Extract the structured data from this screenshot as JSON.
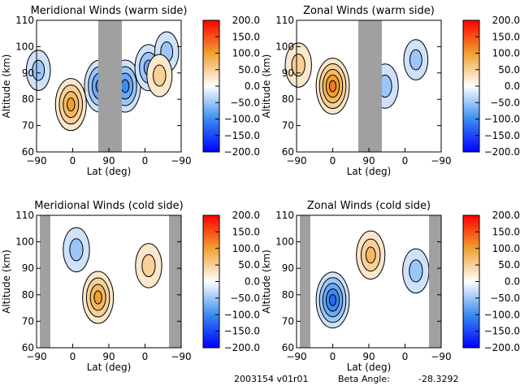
{
  "footer": {
    "id_text": "2003154 v01r01",
    "beta_label": "Beta Angle:",
    "beta_value": "-28.3292"
  },
  "chart_data": [
    {
      "type": "heatmap",
      "title": "Meridional Winds (warm side)",
      "xlabel": "Lat (deg)",
      "ylabel": "Altitude (km)",
      "x_tick_labels": [
        "-90",
        "0",
        "90",
        "0",
        "-90"
      ],
      "y_ticks": [
        60,
        70,
        80,
        90,
        100,
        110
      ],
      "ylim": [
        60,
        110
      ],
      "colorbar": {
        "ticks": [
          "200.0",
          "150.0",
          "100.0",
          "50.0",
          "0.0",
          "-50.0",
          "-100.0",
          "-150.0",
          "-200.0"
        ],
        "range": [
          -200,
          200
        ]
      },
      "masked_lat_band": "around 90 (pole crossing)",
      "features": [
        {
          "kind": "positive",
          "center_lat_idx": 0.95,
          "center_alt": 78,
          "peak": 100
        },
        {
          "kind": "negative",
          "center_lat_idx": 1.75,
          "center_alt": 85,
          "peak": -100
        },
        {
          "kind": "negative",
          "center_lat_idx": 2.45,
          "center_alt": 85,
          "peak": -100
        },
        {
          "kind": "negative",
          "center_lat_idx": 3.1,
          "center_alt": 92,
          "peak": -70
        },
        {
          "kind": "negative",
          "center_lat_idx": 3.6,
          "center_alt": 98,
          "peak": -40
        },
        {
          "kind": "positive",
          "center_lat_idx": 3.4,
          "center_alt": 89,
          "peak": 50
        },
        {
          "kind": "negative",
          "center_lat_idx": 0.05,
          "center_alt": 91,
          "peak": -40
        }
      ]
    },
    {
      "type": "heatmap",
      "title": "Zonal Winds (warm side)",
      "xlabel": "Lat (deg)",
      "ylabel": "Altitude (km)",
      "x_tick_labels": [
        "-90",
        "0",
        "90",
        "0",
        "-90"
      ],
      "y_ticks": [
        60,
        70,
        80,
        90,
        100,
        110
      ],
      "ylim": [
        60,
        110
      ],
      "colorbar": {
        "ticks": [
          "200.0",
          "150.0",
          "100.0",
          "50.0",
          "0.0",
          "-50.0",
          "-100.0",
          "-150.0",
          "-200.0"
        ],
        "range": [
          -200,
          200
        ]
      },
      "masked_lat_band": "around 90 (pole crossing)",
      "features": [
        {
          "kind": "positive",
          "center_lat_idx": 1.0,
          "center_alt": 85,
          "peak": 120
        },
        {
          "kind": "negative",
          "center_lat_idx": 2.45,
          "center_alt": 85,
          "peak": -60
        },
        {
          "kind": "negative",
          "center_lat_idx": 3.3,
          "center_alt": 95,
          "peak": -40
        },
        {
          "kind": "positive",
          "center_lat_idx": 0.05,
          "center_alt": 93,
          "peak": 60
        }
      ]
    },
    {
      "type": "heatmap",
      "title": "Meridional Winds (cold side)",
      "xlabel": "Lat (deg)",
      "ylabel": "Altitude (km)",
      "x_tick_labels": [
        "-90",
        "0",
        "90",
        "0",
        "-90"
      ],
      "y_ticks": [
        60,
        70,
        80,
        90,
        100,
        110
      ],
      "ylim": [
        60,
        110
      ],
      "colorbar": {
        "ticks": [
          "200.0",
          "150.0",
          "100.0",
          "50.0",
          "0.0",
          "-50.0",
          "-100.0",
          "-150.0",
          "-200.0"
        ],
        "range": [
          -200,
          200
        ]
      },
      "masked_lat_band": "near the -90 edges",
      "features": [
        {
          "kind": "positive",
          "center_lat_idx": 1.7,
          "center_alt": 79,
          "peak": 100
        },
        {
          "kind": "negative",
          "center_lat_idx": 1.1,
          "center_alt": 97,
          "peak": -60
        },
        {
          "kind": "positive",
          "center_lat_idx": 3.1,
          "center_alt": 91,
          "peak": 60
        }
      ]
    },
    {
      "type": "heatmap",
      "title": "Zonal Winds (cold side)",
      "xlabel": "Lat (deg)",
      "ylabel": "Altitude (km)",
      "x_tick_labels": [
        "-90",
        "0",
        "90",
        "0",
        "-90"
      ],
      "y_ticks": [
        60,
        70,
        80,
        90,
        100,
        110
      ],
      "ylim": [
        60,
        110
      ],
      "colorbar": {
        "ticks": [
          "200.0",
          "150.0",
          "100.0",
          "50.0",
          "0.0",
          "-50.0",
          "-100.0",
          "-150.0",
          "-200.0"
        ],
        "range": [
          -200,
          200
        ]
      },
      "masked_lat_band": "near the -90 edges",
      "features": [
        {
          "kind": "negative",
          "center_lat_idx": 1.0,
          "center_alt": 78,
          "peak": -120
        },
        {
          "kind": "positive",
          "center_lat_idx": 2.05,
          "center_alt": 95,
          "peak": 80
        },
        {
          "kind": "negative",
          "center_lat_idx": 3.3,
          "center_alt": 89,
          "peak": -60
        }
      ]
    }
  ]
}
